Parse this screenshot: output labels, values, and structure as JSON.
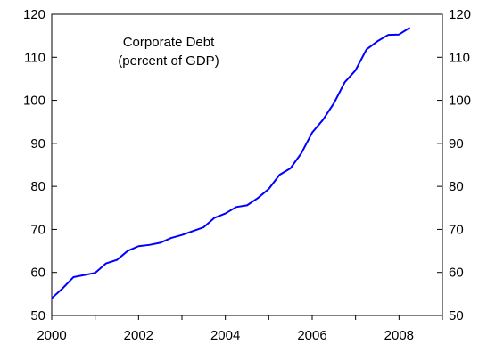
{
  "chart_data": {
    "type": "line",
    "title": "Corporate Debt",
    "subtitle": "(percent of GDP)",
    "xlabel": "",
    "ylabel": "",
    "xlim": [
      2000,
      2009
    ],
    "ylim": [
      50,
      120
    ],
    "x_ticks": [
      "2000",
      "2002",
      "2004",
      "2006",
      "2008"
    ],
    "y_ticks": [
      "50",
      "60",
      "70",
      "80",
      "90",
      "100",
      "110",
      "120"
    ],
    "right_axis_ticks": [
      "50",
      "60",
      "70",
      "80",
      "90",
      "100",
      "110",
      "120"
    ],
    "grid": false,
    "legend": "none",
    "series": [
      {
        "color": "#0000ff",
        "x": [
          2000.0,
          2000.25,
          2000.5,
          2000.75,
          2001.0,
          2001.25,
          2001.5,
          2001.75,
          2002.0,
          2002.25,
          2002.5,
          2002.75,
          2003.0,
          2003.25,
          2003.5,
          2003.75,
          2004.0,
          2004.25,
          2004.5,
          2004.75,
          2005.0,
          2005.25,
          2005.5,
          2005.75,
          2006.0,
          2006.25,
          2006.5,
          2006.75,
          2007.0,
          2007.25,
          2007.5,
          2007.75,
          2008.0,
          2008.25
        ],
        "values": [
          54.0,
          56.3,
          58.9,
          59.4,
          59.9,
          62.1,
          62.9,
          65.0,
          66.1,
          66.4,
          66.9,
          68.0,
          68.7,
          69.6,
          70.5,
          72.7,
          73.7,
          75.2,
          75.6,
          77.3,
          79.4,
          82.7,
          84.2,
          87.7,
          92.5,
          95.5,
          99.3,
          104.2,
          107.0,
          111.8,
          113.7,
          115.2,
          115.3,
          116.9
        ]
      }
    ]
  }
}
